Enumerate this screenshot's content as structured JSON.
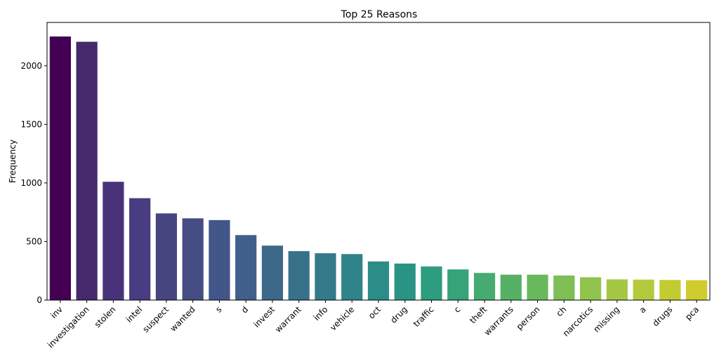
{
  "chart_data": {
    "type": "bar",
    "title": "Top 25 Reasons",
    "xlabel": "",
    "ylabel": "Frequency",
    "ylim": [
      0,
      2370
    ],
    "yticks": [
      0,
      500,
      1000,
      1500,
      2000
    ],
    "grid": false,
    "categories": [
      "inv",
      "investigation",
      "stolen",
      "intel",
      "suspect",
      "wanted",
      "s",
      "d",
      "invest",
      "warrant",
      "info",
      "vehicle",
      "oct",
      "drug",
      "traffic",
      "c",
      "theft",
      "warrants",
      "person",
      "ch",
      "narcotics",
      "missing",
      "a",
      "drugs",
      "pca"
    ],
    "values": [
      2250,
      2205,
      1010,
      870,
      740,
      698,
      683,
      555,
      465,
      418,
      400,
      393,
      330,
      312,
      287,
      262,
      232,
      217,
      217,
      210,
      195,
      177,
      175,
      172,
      170
    ],
    "colors": [
      "#440154",
      "#462a6b",
      "#48337a",
      "#483d82",
      "#47457f",
      "#454d84",
      "#43568a",
      "#405f8a",
      "#3c688a",
      "#38718a",
      "#337a8a",
      "#2f8389",
      "#2c8c87",
      "#2a9484",
      "#2d9c7f",
      "#36a478",
      "#45ab70",
      "#56b167",
      "#69b85e",
      "#7dbe55",
      "#91c44c",
      "#a5c844",
      "#b5c93d",
      "#c2cb32",
      "#cfcc2f"
    ]
  }
}
